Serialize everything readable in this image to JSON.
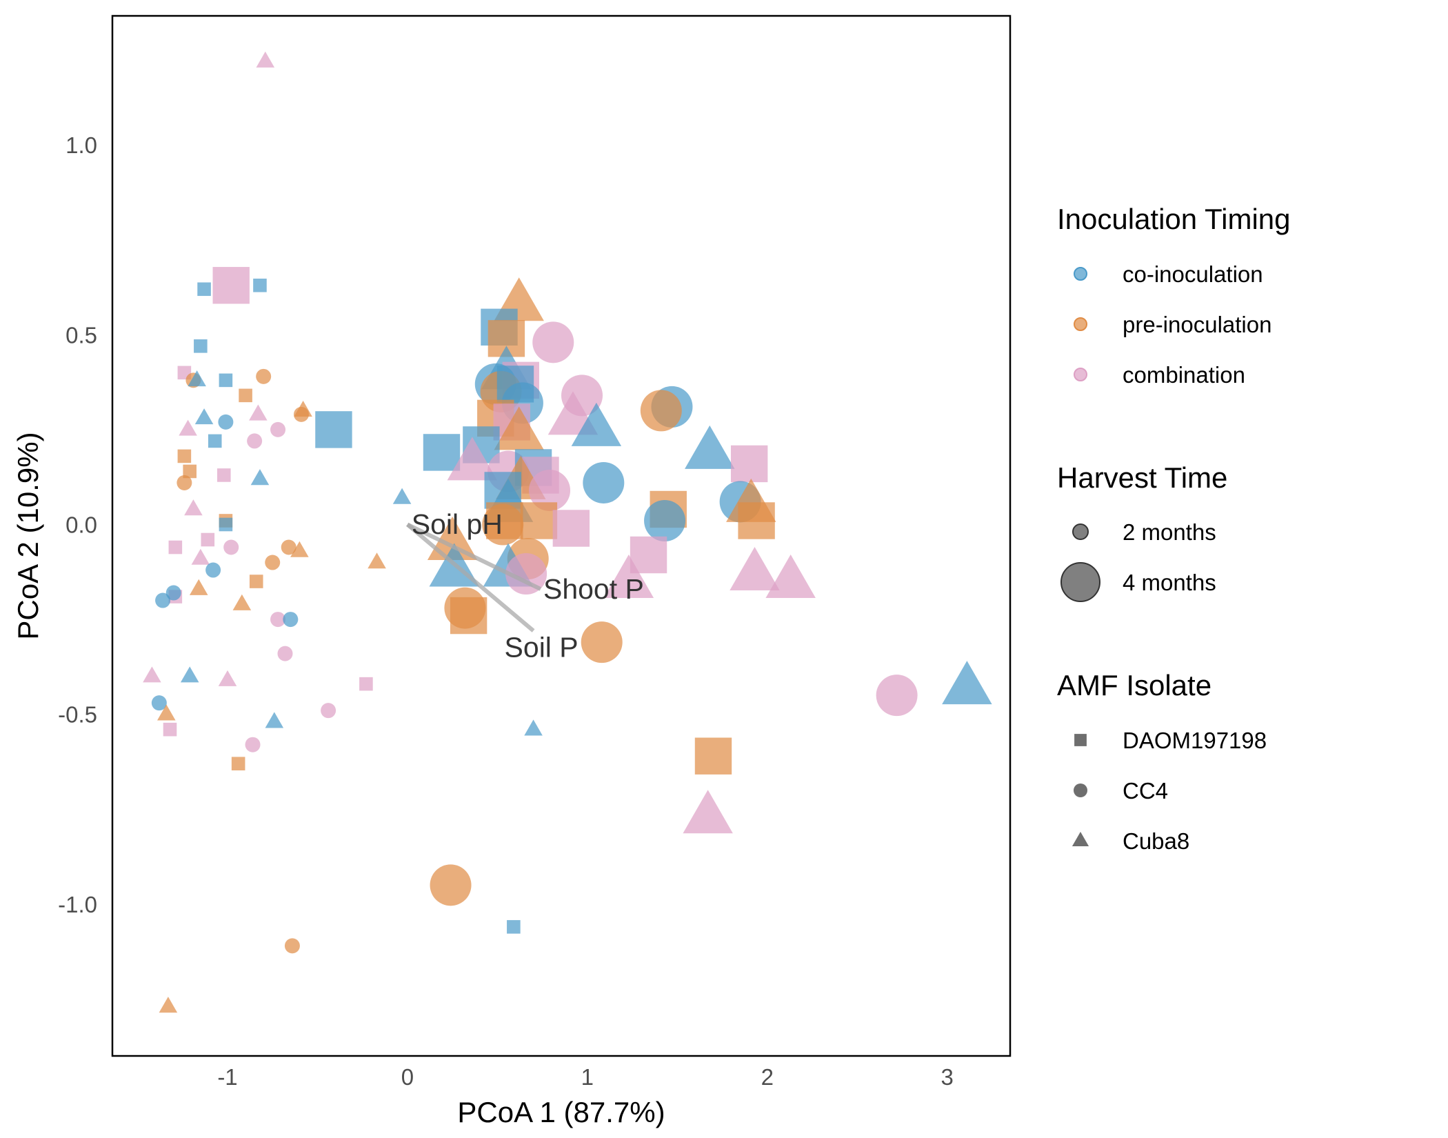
{
  "chart_data": {
    "type": "scatter",
    "title": "",
    "xlabel": "PCoA 1 (87.7%)",
    "ylabel": "PCoA 2 (10.9%)",
    "xlim": [
      -1.64,
      3.35
    ],
    "ylim": [
      -1.4,
      1.34
    ],
    "x_ticks": [
      -1,
      0,
      1,
      2,
      3
    ],
    "x_tick_labels": [
      "-1",
      "0",
      "1",
      "2",
      "3"
    ],
    "y_ticks": [
      1.0,
      0.5,
      0.0,
      -0.5,
      -1.0
    ],
    "y_tick_labels": [
      "1.0",
      "0.5",
      "0.0",
      "-0.5",
      "-1.0"
    ],
    "grid": false,
    "legend_position": "right",
    "colors": {
      "co": "#4a9ac9",
      "pre": "#e08c45",
      "comb": "#dd9fc4"
    },
    "legends": {
      "timing": {
        "title": "Inoculation Timing",
        "items": [
          {
            "key": "co",
            "label": "co-inoculation"
          },
          {
            "key": "pre",
            "label": "pre-inoculation"
          },
          {
            "key": "comb",
            "label": "combination"
          }
        ]
      },
      "harvest": {
        "title": "Harvest Time",
        "items": [
          {
            "key": "2",
            "label": "2 months"
          },
          {
            "key": "4",
            "label": "4 months"
          }
        ]
      },
      "isolate": {
        "title": "AMF Isolate",
        "items": [
          {
            "key": "sq",
            "label": "DAOM197198"
          },
          {
            "key": "ci",
            "label": "CC4"
          },
          {
            "key": "tr",
            "label": "Cuba8"
          }
        ]
      }
    },
    "vectors": [
      {
        "label": "Soil pH",
        "x": 0.03,
        "y": -0.01
      },
      {
        "label": "Shoot P",
        "x": 0.74,
        "y": -0.17
      },
      {
        "label": "Soil P",
        "x": 0.7,
        "y": -0.28
      }
    ],
    "points": [
      {
        "x": -0.79,
        "y": 1.22,
        "t": "comb",
        "h": "2",
        "s": "tr"
      },
      {
        "x": -1.13,
        "y": 0.62,
        "t": "co",
        "h": "2",
        "s": "sq"
      },
      {
        "x": -0.82,
        "y": 0.63,
        "t": "co",
        "h": "2",
        "s": "sq"
      },
      {
        "x": -1.15,
        "y": 0.47,
        "t": "co",
        "h": "2",
        "s": "sq"
      },
      {
        "x": -1.24,
        "y": 0.4,
        "t": "comb",
        "h": "2",
        "s": "sq"
      },
      {
        "x": -1.19,
        "y": 0.38,
        "t": "pre",
        "h": "2",
        "s": "ci"
      },
      {
        "x": -1.17,
        "y": 0.38,
        "t": "co",
        "h": "2",
        "s": "tr"
      },
      {
        "x": -1.01,
        "y": 0.38,
        "t": "co",
        "h": "2",
        "s": "sq"
      },
      {
        "x": -0.8,
        "y": 0.39,
        "t": "pre",
        "h": "2",
        "s": "ci"
      },
      {
        "x": -0.9,
        "y": 0.34,
        "t": "pre",
        "h": "2",
        "s": "sq"
      },
      {
        "x": -0.83,
        "y": 0.29,
        "t": "comb",
        "h": "2",
        "s": "tr"
      },
      {
        "x": -0.58,
        "y": 0.3,
        "t": "pre",
        "h": "2",
        "s": "tr"
      },
      {
        "x": -0.59,
        "y": 0.29,
        "t": "pre",
        "h": "2",
        "s": "ci"
      },
      {
        "x": -1.13,
        "y": 0.28,
        "t": "co",
        "h": "2",
        "s": "tr"
      },
      {
        "x": -1.01,
        "y": 0.27,
        "t": "co",
        "h": "2",
        "s": "ci"
      },
      {
        "x": -1.22,
        "y": 0.25,
        "t": "comb",
        "h": "2",
        "s": "tr"
      },
      {
        "x": -0.72,
        "y": 0.25,
        "t": "comb",
        "h": "2",
        "s": "ci"
      },
      {
        "x": -1.07,
        "y": 0.22,
        "t": "co",
        "h": "2",
        "s": "sq"
      },
      {
        "x": -0.85,
        "y": 0.22,
        "t": "comb",
        "h": "2",
        "s": "ci"
      },
      {
        "x": -1.24,
        "y": 0.18,
        "t": "pre",
        "h": "2",
        "s": "sq"
      },
      {
        "x": -1.21,
        "y": 0.14,
        "t": "pre",
        "h": "2",
        "s": "sq"
      },
      {
        "x": -1.02,
        "y": 0.13,
        "t": "comb",
        "h": "2",
        "s": "sq"
      },
      {
        "x": -0.82,
        "y": 0.12,
        "t": "co",
        "h": "2",
        "s": "tr"
      },
      {
        "x": -1.24,
        "y": 0.11,
        "t": "pre",
        "h": "2",
        "s": "ci"
      },
      {
        "x": -1.19,
        "y": 0.04,
        "t": "comb",
        "h": "2",
        "s": "tr"
      },
      {
        "x": -1.01,
        "y": 0.01,
        "t": "pre",
        "h": "2",
        "s": "sq"
      },
      {
        "x": -1.01,
        "y": 0.0,
        "t": "co",
        "h": "2",
        "s": "sq"
      },
      {
        "x": -1.11,
        "y": -0.04,
        "t": "comb",
        "h": "2",
        "s": "sq"
      },
      {
        "x": -1.29,
        "y": -0.06,
        "t": "comb",
        "h": "2",
        "s": "sq"
      },
      {
        "x": -0.98,
        "y": -0.06,
        "t": "comb",
        "h": "2",
        "s": "ci"
      },
      {
        "x": -0.66,
        "y": -0.06,
        "t": "pre",
        "h": "2",
        "s": "ci"
      },
      {
        "x": -0.6,
        "y": -0.07,
        "t": "pre",
        "h": "2",
        "s": "tr"
      },
      {
        "x": -1.15,
        "y": -0.09,
        "t": "comb",
        "h": "2",
        "s": "tr"
      },
      {
        "x": -0.75,
        "y": -0.1,
        "t": "pre",
        "h": "2",
        "s": "ci"
      },
      {
        "x": -0.17,
        "y": -0.1,
        "t": "pre",
        "h": "2",
        "s": "tr"
      },
      {
        "x": -0.03,
        "y": 0.07,
        "t": "co",
        "h": "2",
        "s": "tr"
      },
      {
        "x": -1.08,
        "y": -0.12,
        "t": "co",
        "h": "2",
        "s": "ci"
      },
      {
        "x": -0.84,
        "y": -0.15,
        "t": "pre",
        "h": "2",
        "s": "sq"
      },
      {
        "x": -1.16,
        "y": -0.17,
        "t": "pre",
        "h": "2",
        "s": "tr"
      },
      {
        "x": -1.29,
        "y": -0.19,
        "t": "comb",
        "h": "2",
        "s": "sq"
      },
      {
        "x": -1.3,
        "y": -0.18,
        "t": "co",
        "h": "2",
        "s": "ci"
      },
      {
        "x": -1.36,
        "y": -0.2,
        "t": "co",
        "h": "2",
        "s": "ci"
      },
      {
        "x": -0.92,
        "y": -0.21,
        "t": "pre",
        "h": "2",
        "s": "tr"
      },
      {
        "x": -0.72,
        "y": -0.25,
        "t": "comb",
        "h": "2",
        "s": "ci"
      },
      {
        "x": -0.65,
        "y": -0.25,
        "t": "co",
        "h": "2",
        "s": "ci"
      },
      {
        "x": -0.68,
        "y": -0.34,
        "t": "comb",
        "h": "2",
        "s": "ci"
      },
      {
        "x": -1.42,
        "y": -0.4,
        "t": "comb",
        "h": "2",
        "s": "tr"
      },
      {
        "x": -1.21,
        "y": -0.4,
        "t": "co",
        "h": "2",
        "s": "tr"
      },
      {
        "x": -1.0,
        "y": -0.41,
        "t": "comb",
        "h": "2",
        "s": "tr"
      },
      {
        "x": -0.23,
        "y": -0.42,
        "t": "comb",
        "h": "2",
        "s": "sq"
      },
      {
        "x": -1.38,
        "y": -0.47,
        "t": "co",
        "h": "2",
        "s": "ci"
      },
      {
        "x": -1.34,
        "y": -0.5,
        "t": "pre",
        "h": "2",
        "s": "tr"
      },
      {
        "x": -0.74,
        "y": -0.52,
        "t": "co",
        "h": "2",
        "s": "tr"
      },
      {
        "x": -0.44,
        "y": -0.49,
        "t": "comb",
        "h": "2",
        "s": "ci"
      },
      {
        "x": -1.32,
        "y": -0.54,
        "t": "comb",
        "h": "2",
        "s": "sq"
      },
      {
        "x": 0.7,
        "y": -0.54,
        "t": "co",
        "h": "2",
        "s": "tr"
      },
      {
        "x": -0.86,
        "y": -0.58,
        "t": "comb",
        "h": "2",
        "s": "ci"
      },
      {
        "x": -0.94,
        "y": -0.63,
        "t": "pre",
        "h": "2",
        "s": "sq"
      },
      {
        "x": 0.59,
        "y": -1.06,
        "t": "co",
        "h": "2",
        "s": "sq"
      },
      {
        "x": -0.64,
        "y": -1.11,
        "t": "pre",
        "h": "2",
        "s": "ci"
      },
      {
        "x": -1.33,
        "y": -1.27,
        "t": "pre",
        "h": "2",
        "s": "tr"
      },
      {
        "x": -0.98,
        "y": 0.63,
        "t": "comb",
        "h": "4",
        "s": "sq"
      },
      {
        "x": -0.41,
        "y": 0.25,
        "t": "co",
        "h": "4",
        "s": "sq"
      },
      {
        "x": 0.62,
        "y": 0.58,
        "t": "pre",
        "h": "4",
        "s": "tr"
      },
      {
        "x": 0.51,
        "y": 0.52,
        "t": "co",
        "h": "4",
        "s": "sq"
      },
      {
        "x": 0.55,
        "y": 0.49,
        "t": "pre",
        "h": "4",
        "s": "sq"
      },
      {
        "x": 0.81,
        "y": 0.48,
        "t": "comb",
        "h": "4",
        "s": "ci"
      },
      {
        "x": 0.55,
        "y": 0.4,
        "t": "co",
        "h": "4",
        "s": "tr"
      },
      {
        "x": 0.63,
        "y": 0.38,
        "t": "comb",
        "h": "4",
        "s": "sq"
      },
      {
        "x": 0.49,
        "y": 0.37,
        "t": "co",
        "h": "4",
        "s": "ci"
      },
      {
        "x": 0.52,
        "y": 0.35,
        "t": "pre",
        "h": "4",
        "s": "ci"
      },
      {
        "x": 0.6,
        "y": 0.37,
        "t": "co",
        "h": "4",
        "s": "sq"
      },
      {
        "x": 0.64,
        "y": 0.32,
        "t": "co",
        "h": "4",
        "s": "ci"
      },
      {
        "x": 0.97,
        "y": 0.34,
        "t": "comb",
        "h": "4",
        "s": "ci"
      },
      {
        "x": 0.92,
        "y": 0.28,
        "t": "comb",
        "h": "4",
        "s": "tr"
      },
      {
        "x": 1.05,
        "y": 0.25,
        "t": "co",
        "h": "4",
        "s": "tr"
      },
      {
        "x": 0.49,
        "y": 0.28,
        "t": "pre",
        "h": "4",
        "s": "sq"
      },
      {
        "x": 0.58,
        "y": 0.27,
        "t": "comb",
        "h": "4",
        "s": "sq"
      },
      {
        "x": 0.62,
        "y": 0.24,
        "t": "pre",
        "h": "4",
        "s": "tr"
      },
      {
        "x": 0.41,
        "y": 0.21,
        "t": "co",
        "h": "4",
        "s": "sq"
      },
      {
        "x": 0.19,
        "y": 0.19,
        "t": "co",
        "h": "4",
        "s": "sq"
      },
      {
        "x": 0.36,
        "y": 0.16,
        "t": "comb",
        "h": "4",
        "s": "tr"
      },
      {
        "x": 0.56,
        "y": 0.14,
        "t": "comb",
        "h": "4",
        "s": "ci"
      },
      {
        "x": 0.7,
        "y": 0.15,
        "t": "co",
        "h": "4",
        "s": "sq"
      },
      {
        "x": 0.74,
        "y": 0.13,
        "t": "comb",
        "h": "4",
        "s": "sq"
      },
      {
        "x": 0.63,
        "y": 0.11,
        "t": "pre",
        "h": "4",
        "s": "tr"
      },
      {
        "x": 1.09,
        "y": 0.11,
        "t": "co",
        "h": "4",
        "s": "ci"
      },
      {
        "x": 1.47,
        "y": 0.31,
        "t": "co",
        "h": "4",
        "s": "ci"
      },
      {
        "x": 1.41,
        "y": 0.3,
        "t": "pre",
        "h": "4",
        "s": "ci"
      },
      {
        "x": 1.68,
        "y": 0.19,
        "t": "co",
        "h": "4",
        "s": "tr"
      },
      {
        "x": 1.9,
        "y": 0.16,
        "t": "comb",
        "h": "4",
        "s": "sq"
      },
      {
        "x": 0.79,
        "y": 0.09,
        "t": "comb",
        "h": "4",
        "s": "ci"
      },
      {
        "x": 0.53,
        "y": 0.09,
        "t": "co",
        "h": "4",
        "s": "sq"
      },
      {
        "x": 0.56,
        "y": 0.05,
        "t": "co",
        "h": "4",
        "s": "tr"
      },
      {
        "x": 0.54,
        "y": 0.01,
        "t": "pre",
        "h": "4",
        "s": "sq"
      },
      {
        "x": 0.53,
        "y": 0.0,
        "t": "pre",
        "h": "4",
        "s": "ci"
      },
      {
        "x": 0.73,
        "y": 0.01,
        "t": "pre",
        "h": "4",
        "s": "sq"
      },
      {
        "x": 0.91,
        "y": -0.01,
        "t": "comb",
        "h": "4",
        "s": "sq"
      },
      {
        "x": 1.45,
        "y": 0.04,
        "t": "pre",
        "h": "4",
        "s": "sq"
      },
      {
        "x": 1.43,
        "y": 0.01,
        "t": "co",
        "h": "4",
        "s": "ci"
      },
      {
        "x": 1.85,
        "y": 0.06,
        "t": "co",
        "h": "4",
        "s": "ci"
      },
      {
        "x": 1.91,
        "y": 0.05,
        "t": "pre",
        "h": "4",
        "s": "tr"
      },
      {
        "x": 1.94,
        "y": 0.01,
        "t": "pre",
        "h": "4",
        "s": "sq"
      },
      {
        "x": 0.25,
        "y": -0.05,
        "t": "pre",
        "h": "4",
        "s": "tr"
      },
      {
        "x": 0.67,
        "y": -0.09,
        "t": "pre",
        "h": "4",
        "s": "ci"
      },
      {
        "x": 1.34,
        "y": -0.08,
        "t": "comb",
        "h": "4",
        "s": "sq"
      },
      {
        "x": 0.26,
        "y": -0.12,
        "t": "co",
        "h": "4",
        "s": "tr"
      },
      {
        "x": 0.56,
        "y": -0.12,
        "t": "co",
        "h": "4",
        "s": "tr"
      },
      {
        "x": 0.66,
        "y": -0.13,
        "t": "comb",
        "h": "4",
        "s": "ci"
      },
      {
        "x": 1.23,
        "y": -0.15,
        "t": "comb",
        "h": "4",
        "s": "tr"
      },
      {
        "x": 1.93,
        "y": -0.13,
        "t": "comb",
        "h": "4",
        "s": "tr"
      },
      {
        "x": 2.13,
        "y": -0.15,
        "t": "comb",
        "h": "4",
        "s": "tr"
      },
      {
        "x": 0.32,
        "y": -0.22,
        "t": "pre",
        "h": "4",
        "s": "ci"
      },
      {
        "x": 0.34,
        "y": -0.24,
        "t": "pre",
        "h": "4",
        "s": "sq"
      },
      {
        "x": 1.08,
        "y": -0.31,
        "t": "pre",
        "h": "4",
        "s": "ci"
      },
      {
        "x": 2.72,
        "y": -0.45,
        "t": "comb",
        "h": "4",
        "s": "ci"
      },
      {
        "x": 3.11,
        "y": -0.43,
        "t": "co",
        "h": "4",
        "s": "tr"
      },
      {
        "x": 1.7,
        "y": -0.61,
        "t": "pre",
        "h": "4",
        "s": "sq"
      },
      {
        "x": 1.67,
        "y": -0.77,
        "t": "comb",
        "h": "4",
        "s": "tr"
      },
      {
        "x": 0.24,
        "y": -0.95,
        "t": "pre",
        "h": "4",
        "s": "ci"
      }
    ]
  }
}
